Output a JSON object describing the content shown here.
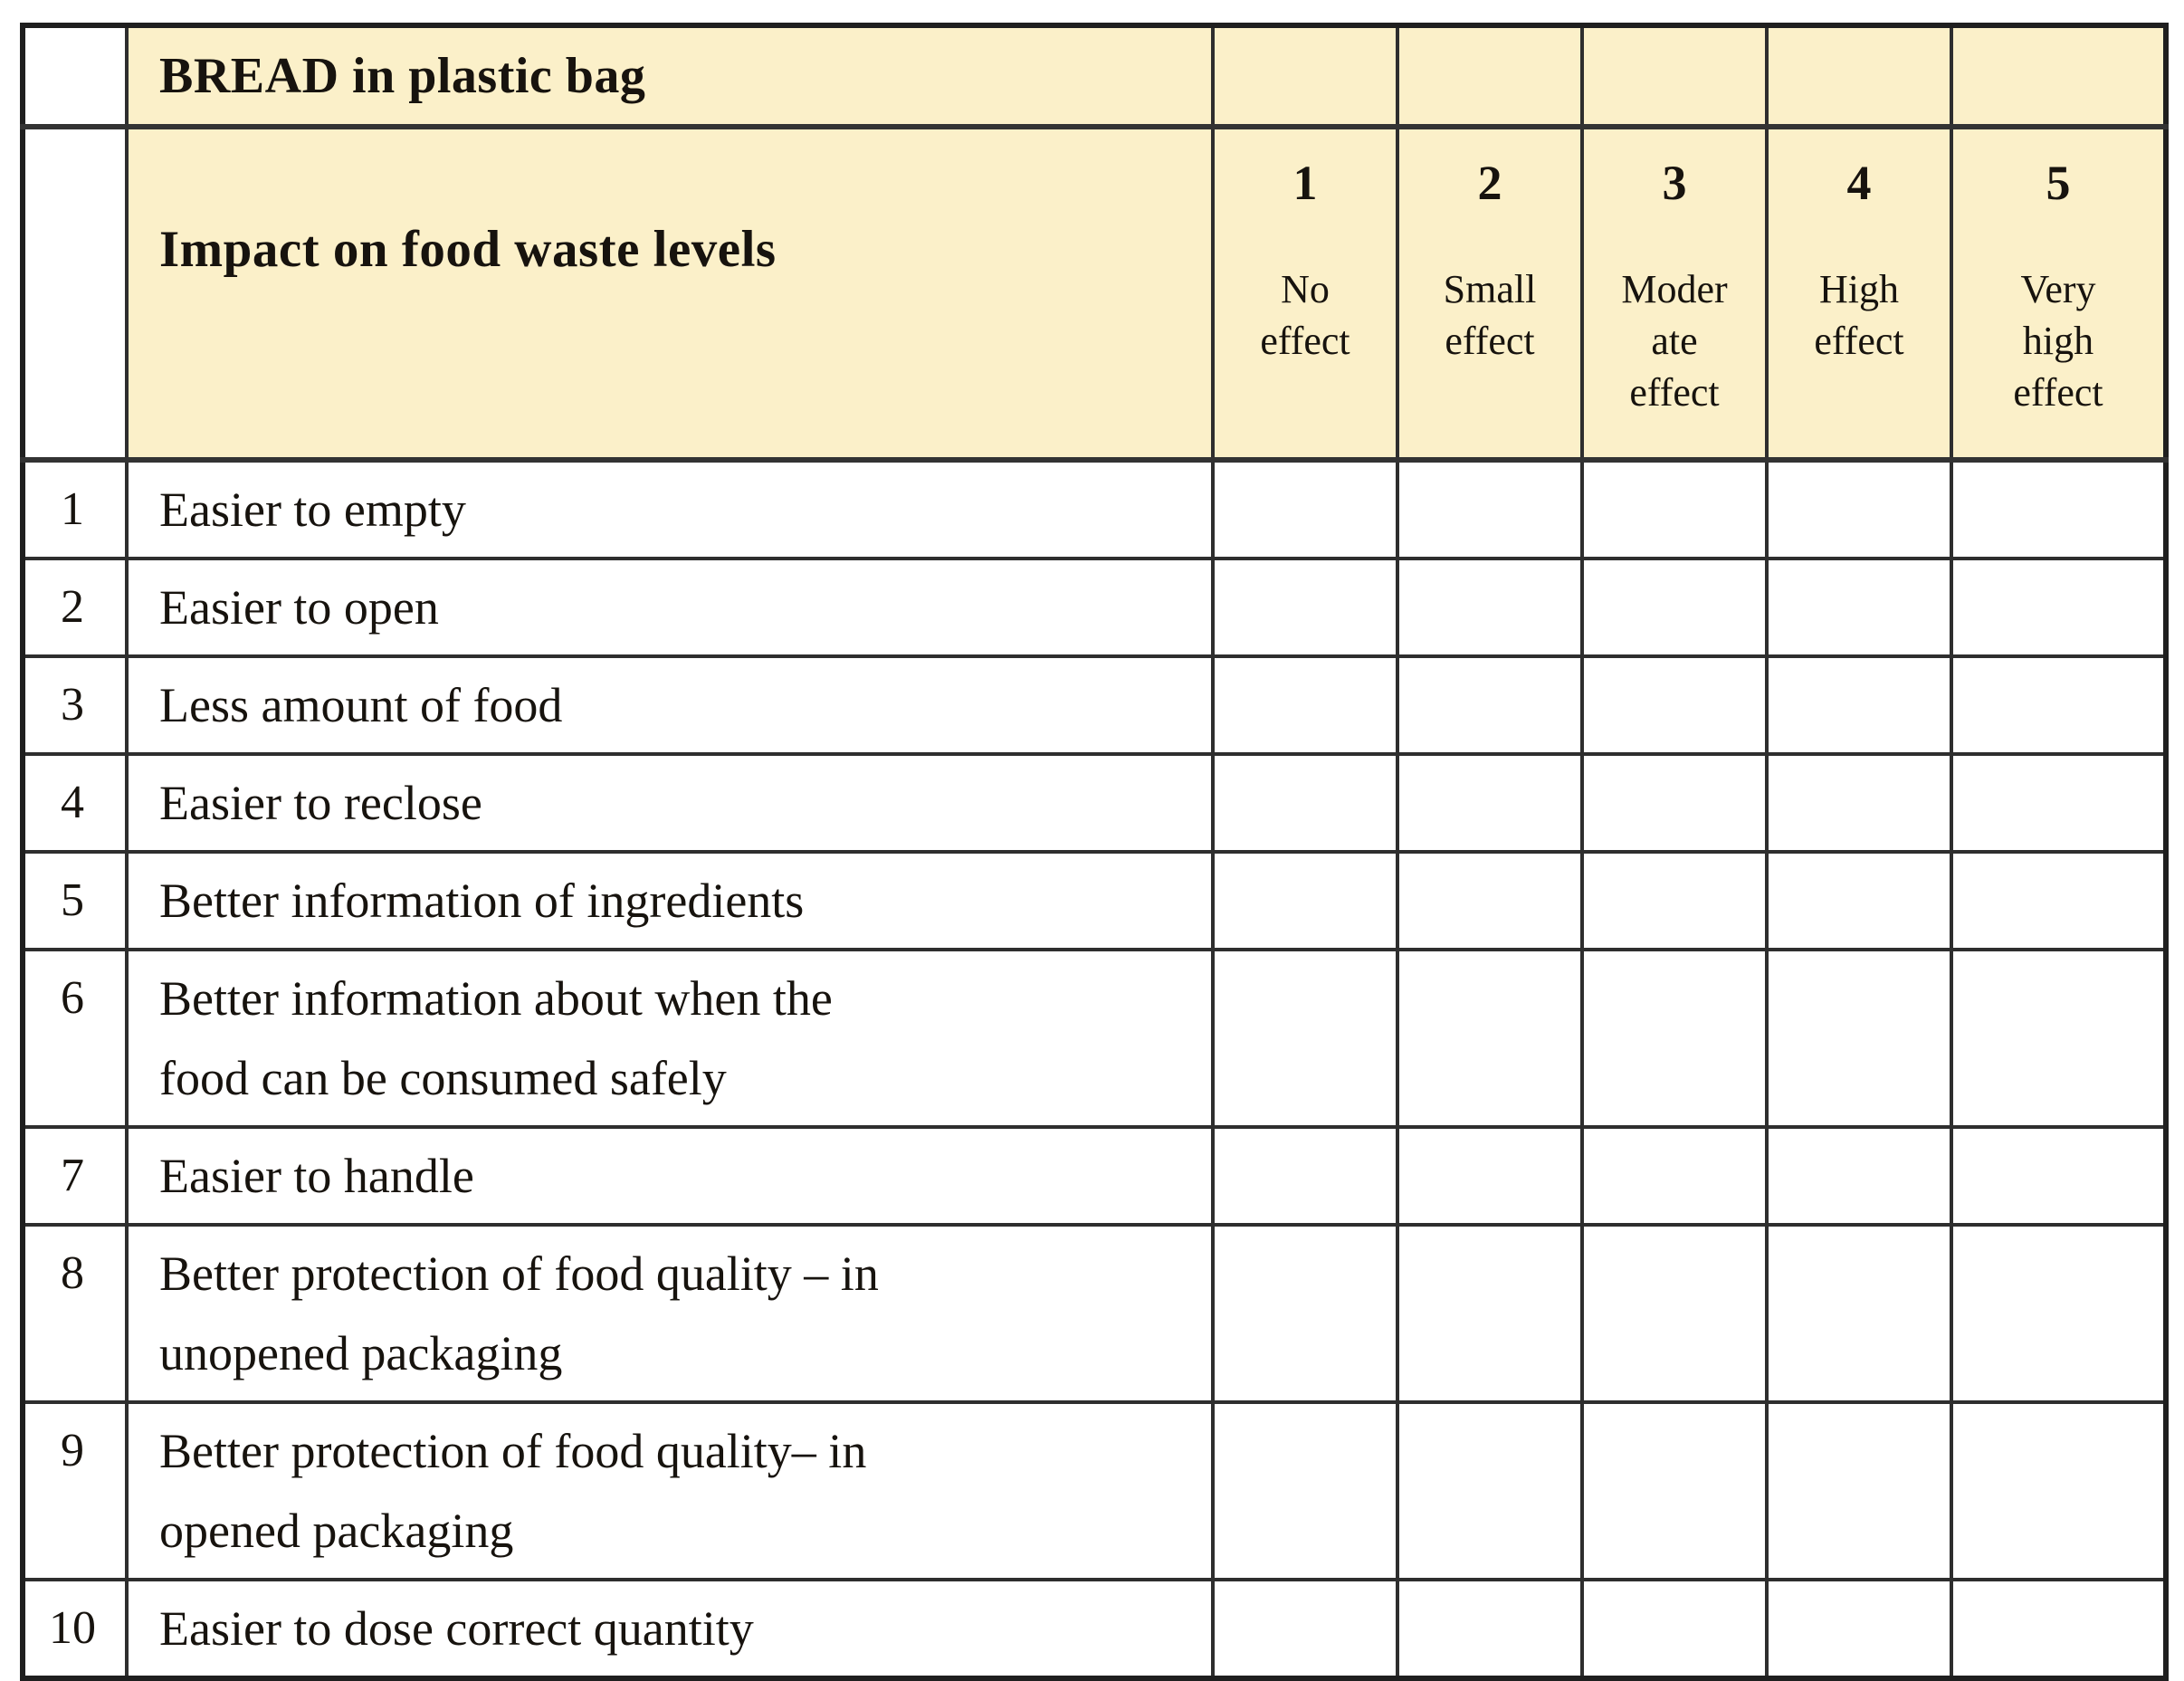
{
  "survey": {
    "product_header": "BREAD in plastic bag",
    "question_header": "Impact on food waste levels",
    "scale": [
      {
        "value": "1",
        "label": "No effect",
        "lines": [
          "No",
          "effect"
        ]
      },
      {
        "value": "2",
        "label": "Small effect",
        "lines": [
          "Small",
          "effect"
        ]
      },
      {
        "value": "3",
        "label": "Moderate effect",
        "lines": [
          "Moder",
          "ate",
          "effect"
        ]
      },
      {
        "value": "4",
        "label": "High effect",
        "lines": [
          "High",
          "effect"
        ]
      },
      {
        "value": "5",
        "label": "Very high effect",
        "lines": [
          "Very",
          "high",
          "effect"
        ]
      }
    ],
    "rows": [
      {
        "number": "1",
        "lines": [
          "Easier to empty"
        ]
      },
      {
        "number": "2",
        "lines": [
          "Easier to open"
        ]
      },
      {
        "number": "3",
        "lines": [
          "Less amount of food"
        ]
      },
      {
        "number": "4",
        "lines": [
          "Easier to reclose"
        ]
      },
      {
        "number": "5",
        "lines": [
          "Better information of ingredients"
        ]
      },
      {
        "number": "6",
        "lines": [
          "Better information about when the",
          "food can be consumed safely"
        ]
      },
      {
        "number": "7",
        "lines": [
          "Easier to handle"
        ]
      },
      {
        "number": "8",
        "lines": [
          "Better protection of food quality – in",
          "unopened packaging"
        ]
      },
      {
        "number": "9",
        "lines": [
          "Better protection of food quality– in",
          "opened packaging"
        ]
      },
      {
        "number": "10",
        "lines": [
          "Easier to dose correct quantity"
        ]
      }
    ],
    "colors": {
      "header_bg": "#FBF0C9",
      "body_bg": "#FFFFFF",
      "border": "#2E2E2E",
      "text": "#17130E"
    }
  }
}
